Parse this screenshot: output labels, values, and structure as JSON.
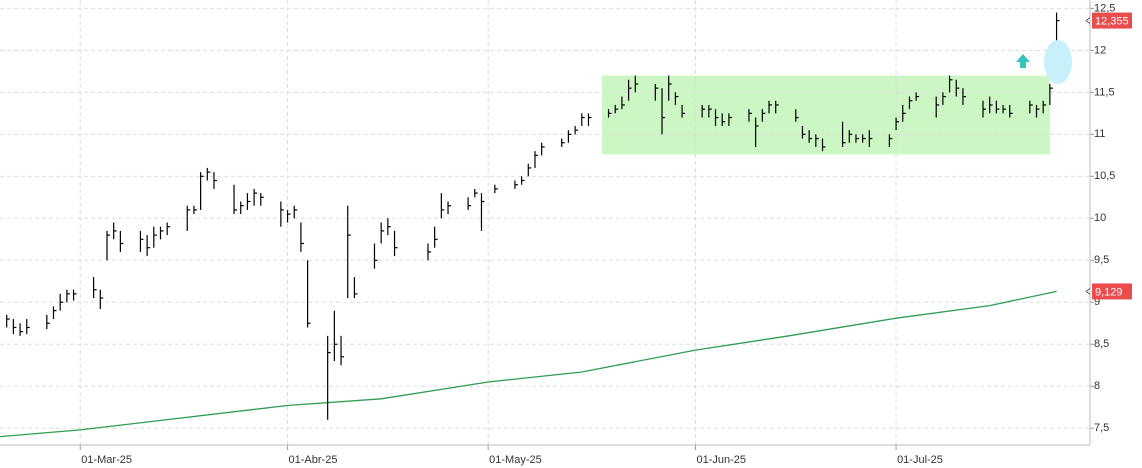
{
  "chart_data": {
    "type": "ohlc",
    "x": [
      "2025-02-18",
      "2025-02-19",
      "2025-02-20",
      "2025-02-21",
      "2025-02-24",
      "2025-02-25",
      "2025-02-26",
      "2025-02-27",
      "2025-02-28",
      "2025-03-03",
      "2025-03-04",
      "2025-03-05",
      "2025-03-06",
      "2025-03-07",
      "2025-03-10",
      "2025-03-11",
      "2025-03-12",
      "2025-03-13",
      "2025-03-14",
      "2025-03-17",
      "2025-03-18",
      "2025-03-19",
      "2025-03-20",
      "2025-03-21",
      "2025-03-24",
      "2025-03-25",
      "2025-03-26",
      "2025-03-27",
      "2025-03-28",
      "2025-03-31",
      "2025-04-01",
      "2025-04-02",
      "2025-04-03",
      "2025-04-04",
      "2025-04-07",
      "2025-04-08",
      "2025-04-09",
      "2025-04-10",
      "2025-04-11",
      "2025-04-14",
      "2025-04-15",
      "2025-04-16",
      "2025-04-17",
      "2025-04-22",
      "2025-04-23",
      "2025-04-24",
      "2025-04-25",
      "2025-04-28",
      "2025-04-29",
      "2025-04-30",
      "2025-05-02",
      "2025-05-05",
      "2025-05-06",
      "2025-05-07",
      "2025-05-08",
      "2025-05-09",
      "2025-05-12",
      "2025-05-13",
      "2025-05-14",
      "2025-05-15",
      "2025-05-16",
      "2025-05-19",
      "2025-05-20",
      "2025-05-21",
      "2025-05-22",
      "2025-05-23",
      "2025-05-26",
      "2025-05-27",
      "2025-05-28",
      "2025-05-29",
      "2025-05-30",
      "2025-06-02",
      "2025-06-03",
      "2025-06-04",
      "2025-06-05",
      "2025-06-06",
      "2025-06-09",
      "2025-06-10",
      "2025-06-11",
      "2025-06-12",
      "2025-06-13",
      "2025-06-16",
      "2025-06-17",
      "2025-06-18",
      "2025-06-19",
      "2025-06-20",
      "2025-06-23",
      "2025-06-24",
      "2025-06-25",
      "2025-06-26",
      "2025-06-27",
      "2025-06-30",
      "2025-07-01",
      "2025-07-02",
      "2025-07-03",
      "2025-07-04",
      "2025-07-07",
      "2025-07-08",
      "2025-07-09",
      "2025-07-10",
      "2025-07-11",
      "2025-07-14",
      "2025-07-15",
      "2025-07-16",
      "2025-07-17",
      "2025-07-18",
      "2025-07-21",
      "2025-07-22",
      "2025-07-23",
      "2025-07-24",
      "2025-07-25"
    ],
    "high": [
      8.85,
      8.8,
      8.75,
      8.8,
      8.85,
      8.95,
      9.1,
      9.15,
      9.15,
      9.3,
      9.15,
      9.85,
      9.95,
      9.85,
      9.85,
      9.8,
      9.9,
      9.9,
      9.95,
      10.15,
      10.15,
      10.55,
      10.6,
      10.55,
      10.4,
      10.2,
      10.3,
      10.35,
      10.3,
      10.2,
      10.1,
      10.15,
      9.95,
      9.5,
      8.6,
      8.9,
      8.6,
      10.15,
      9.3,
      9.7,
      9.95,
      10.0,
      9.85,
      9.7,
      9.9,
      10.3,
      10.2,
      10.25,
      10.35,
      10.3,
      10.4,
      10.45,
      10.5,
      10.65,
      10.8,
      10.9,
      10.95,
      11.05,
      11.1,
      11.25,
      11.25,
      11.3,
      11.35,
      11.45,
      11.65,
      11.7,
      11.6,
      11.55,
      11.7,
      11.5,
      11.35,
      11.35,
      11.35,
      11.3,
      11.25,
      11.25,
      11.3,
      11.2,
      11.3,
      11.4,
      11.4,
      11.3,
      11.1,
      11.05,
      11.0,
      10.95,
      11.15,
      11.05,
      11.0,
      11.0,
      11.05,
      11.0,
      11.2,
      11.35,
      11.45,
      11.5,
      11.45,
      11.5,
      11.7,
      11.65,
      11.55,
      11.4,
      11.45,
      11.4,
      11.35,
      11.35,
      11.4,
      11.35,
      11.4,
      11.6,
      12.45
    ],
    "low": [
      8.7,
      8.62,
      8.6,
      8.62,
      8.68,
      8.8,
      8.9,
      9.0,
      9.02,
      9.05,
      8.92,
      9.5,
      9.75,
      9.6,
      9.6,
      9.55,
      9.65,
      9.75,
      9.8,
      9.85,
      10.05,
      10.1,
      10.45,
      10.35,
      10.05,
      10.05,
      10.1,
      10.15,
      10.15,
      9.9,
      9.95,
      10.0,
      9.6,
      8.7,
      7.6,
      8.3,
      8.25,
      9.05,
      9.05,
      9.4,
      9.7,
      9.8,
      9.55,
      9.5,
      9.65,
      10.0,
      10.05,
      10.1,
      10.25,
      9.85,
      10.3,
      10.35,
      10.4,
      10.5,
      10.6,
      10.75,
      10.85,
      10.9,
      11.0,
      11.1,
      11.1,
      11.2,
      11.25,
      11.3,
      11.4,
      11.5,
      11.4,
      11.0,
      11.4,
      11.35,
      11.2,
      11.2,
      11.2,
      11.1,
      11.1,
      11.1,
      11.15,
      10.85,
      11.15,
      11.25,
      11.25,
      11.15,
      10.95,
      10.9,
      10.85,
      10.8,
      10.85,
      10.9,
      10.9,
      10.9,
      10.85,
      10.85,
      11.05,
      11.15,
      11.3,
      11.4,
      11.2,
      11.35,
      11.5,
      11.45,
      11.35,
      11.2,
      11.25,
      11.25,
      11.25,
      11.2,
      11.25,
      11.2,
      11.25,
      11.35,
      12.1
    ],
    "close": [
      8.8,
      8.7,
      8.65,
      8.7,
      8.75,
      8.9,
      9.0,
      9.1,
      9.1,
      9.15,
      9.05,
      9.8,
      9.85,
      9.7,
      9.75,
      9.65,
      9.8,
      9.85,
      9.9,
      10.1,
      10.1,
      10.5,
      10.55,
      10.45,
      10.1,
      10.15,
      10.2,
      10.3,
      10.25,
      10.1,
      10.05,
      10.1,
      9.7,
      8.75,
      8.4,
      8.5,
      8.35,
      9.8,
      9.1,
      9.5,
      9.85,
      9.9,
      9.65,
      9.6,
      9.75,
      10.1,
      10.15,
      10.15,
      10.3,
      10.2,
      10.35,
      10.4,
      10.45,
      10.6,
      10.75,
      10.85,
      10.9,
      11.0,
      11.05,
      11.2,
      11.2,
      11.25,
      11.3,
      11.35,
      11.55,
      11.6,
      11.55,
      11.2,
      11.6,
      11.45,
      11.25,
      11.3,
      11.3,
      11.2,
      11.15,
      11.2,
      11.25,
      11.1,
      11.25,
      11.35,
      11.35,
      11.2,
      11.0,
      10.95,
      10.95,
      10.85,
      10.9,
      11.0,
      10.95,
      10.95,
      10.95,
      10.95,
      11.15,
      11.25,
      11.4,
      11.45,
      11.35,
      11.45,
      11.65,
      11.55,
      11.45,
      11.3,
      11.35,
      11.3,
      11.3,
      11.25,
      11.35,
      11.3,
      11.35,
      11.55,
      12.355
    ],
    "color": "#000000",
    "last_label": "12,355",
    "label_color": "#e84c4c",
    "xlim": [
      "2025-02-17",
      "2025-07-30"
    ],
    "ylim": [
      7.3,
      12.6
    ],
    "yticks": [
      {
        "value": 7.5,
        "label": "7,5"
      },
      8,
      {
        "value": 8.5,
        "label": "8,5"
      },
      9,
      {
        "value": 9.5,
        "label": "9,5"
      },
      10,
      {
        "value": 10.5,
        "label": "10,5"
      },
      11,
      {
        "value": 11.5,
        "label": "11,5"
      },
      12,
      {
        "value": 12.5,
        "label": "12,5"
      }
    ],
    "xticks": [
      {
        "value": "2025-03-01",
        "label": "01-Mar-25"
      },
      {
        "value": "2025-04-01",
        "label": "01-Abr-25"
      },
      {
        "value": "2025-05-01",
        "label": "01-May-25"
      },
      {
        "value": "2025-06-01",
        "label": "01-Jun-25"
      },
      {
        "value": "2025-07-01",
        "label": "01-Jul-25"
      }
    ],
    "grid": true,
    "moving_average": {
      "color": "#2e9e4f",
      "x": [
        "2025-02-17",
        "2025-03-01",
        "2025-04-01",
        "2025-04-15",
        "2025-05-01",
        "2025-05-15",
        "2025-06-01",
        "2025-06-15",
        "2025-07-01",
        "2025-07-15",
        "2025-07-25"
      ],
      "values": [
        7.4,
        7.48,
        7.77,
        7.85,
        8.05,
        8.17,
        8.43,
        8.6,
        8.81,
        8.96,
        9.129
      ],
      "last_label": "9,129"
    },
    "highlight": {
      "x0": "2025-05-18",
      "x1": "2025-07-24",
      "y0": 10.76,
      "y1": 11.7,
      "color": "#ccf7c4"
    }
  }
}
